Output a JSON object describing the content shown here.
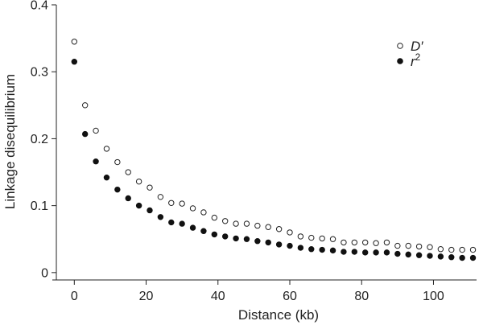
{
  "chart_data": {
    "type": "scatter",
    "xlabel": "Distance (kb)",
    "ylabel": "Linkage disequilibrium",
    "xlim": [
      -5,
      112
    ],
    "ylim": [
      -0.005,
      0.4
    ],
    "x_ticks": [
      0,
      20,
      40,
      60,
      80,
      100
    ],
    "y_ticks": [
      0,
      0.1,
      0.2,
      0.3,
      0.4
    ],
    "x_tick_labels": [
      "0",
      "20",
      "40",
      "60",
      "80",
      "100"
    ],
    "y_tick_labels": [
      "0",
      "0.1",
      "0.2",
      "0.3",
      "0.4"
    ],
    "grid": false,
    "legend_position": "top-right",
    "x": [
      0,
      3,
      6,
      9,
      12,
      15,
      18,
      21,
      24,
      27,
      30,
      33,
      36,
      39,
      42,
      45,
      48,
      51,
      54,
      57,
      60,
      63,
      66,
      69,
      72,
      75,
      78,
      81,
      84,
      87,
      90,
      93,
      96,
      99,
      102,
      105,
      108,
      111
    ],
    "series": [
      {
        "name": "D′",
        "marker": "open-circle",
        "color": "#222222",
        "values": [
          0.345,
          0.25,
          0.212,
          0.185,
          0.165,
          0.15,
          0.136,
          0.127,
          0.113,
          0.104,
          0.103,
          0.096,
          0.09,
          0.082,
          0.077,
          0.073,
          0.073,
          0.07,
          0.068,
          0.065,
          0.06,
          0.054,
          0.052,
          0.051,
          0.05,
          0.045,
          0.045,
          0.045,
          0.044,
          0.045,
          0.04,
          0.04,
          0.039,
          0.038,
          0.035,
          0.034,
          0.034,
          0.034
        ]
      },
      {
        "name": "r2",
        "marker": "filled-circle",
        "color": "#111111",
        "values": [
          0.315,
          0.207,
          0.166,
          0.142,
          0.124,
          0.111,
          0.1,
          0.093,
          0.083,
          0.075,
          0.073,
          0.067,
          0.062,
          0.057,
          0.054,
          0.051,
          0.05,
          0.047,
          0.045,
          0.042,
          0.04,
          0.037,
          0.035,
          0.034,
          0.033,
          0.031,
          0.031,
          0.03,
          0.03,
          0.03,
          0.028,
          0.027,
          0.026,
          0.025,
          0.024,
          0.023,
          0.022,
          0.022
        ]
      }
    ],
    "legend": [
      {
        "label_main": "D",
        "label_suffix": "′"
      },
      {
        "label_main": "r",
        "label_suffix": "2"
      }
    ]
  }
}
